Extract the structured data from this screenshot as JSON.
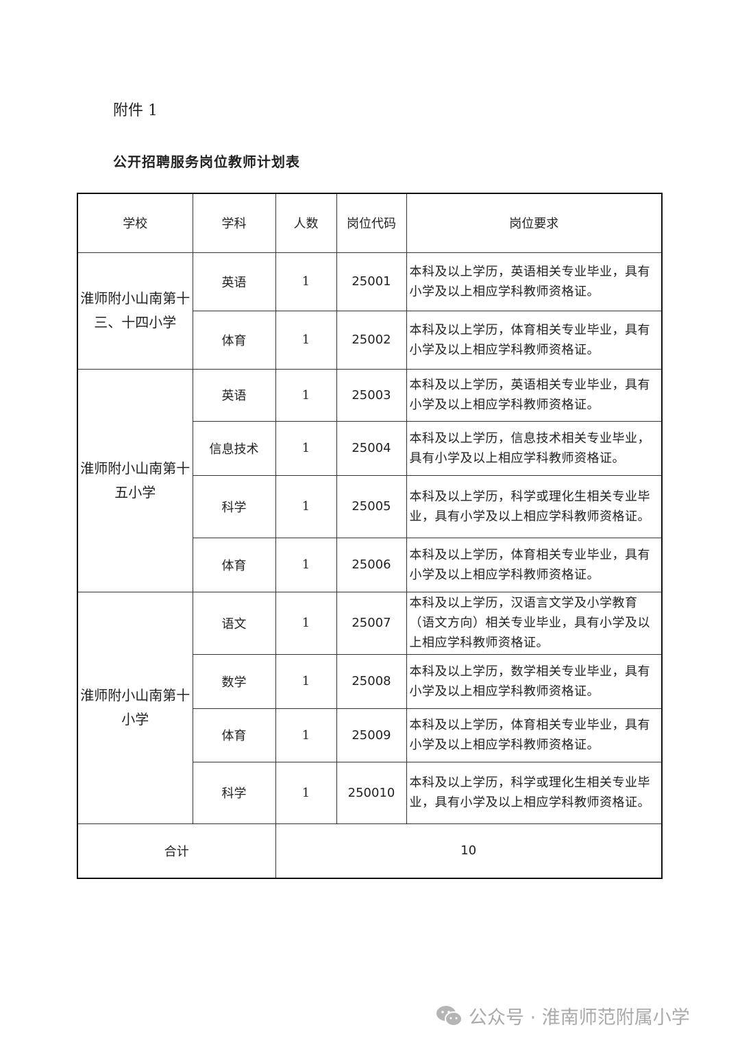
{
  "attachment_label": "附件 1",
  "title": "公开招聘服务岗位教师计划表",
  "headers": [
    "学校",
    "学科",
    "人数",
    "岗位代码",
    "岗位要求"
  ],
  "groups": [
    {
      "school": "淮师附小山南第十三、十四小学",
      "rows": [
        {
          "subject": "英语",
          "count": "1",
          "code": "25001",
          "req": "本科及以上学历，英语相关专业毕业，具有小学及以上相应学科教师资格证。"
        },
        {
          "subject": "体育",
          "count": "1",
          "code": "25002",
          "req": "本科及以上学历，体育相关专业毕业，具有小学及以上相应学科教师资格证。"
        }
      ]
    },
    {
      "school": "淮师附小山南第十五小学",
      "rows": [
        {
          "subject": "英语",
          "count": "1",
          "code": "25003",
          "req": "本科及以上学历，英语相关专业毕业，具有小学及以上相应学科教师资格证。"
        },
        {
          "subject": "信息技术",
          "count": "1",
          "code": "25004",
          "req": "本科及以上学历，信息技术相关专业毕业，具有小学及以上相应学科教师资格证。"
        },
        {
          "subject": "科学",
          "count": "1",
          "code": "25005",
          "req": "本科及以上学历，科学或理化生相关专业毕业，具有小学及以上相应学科教师资格证。"
        },
        {
          "subject": "体育",
          "count": "1",
          "code": "25006",
          "req": "本科及以上学历，体育相关专业毕业，具有小学及以上相应学科教师资格证。"
        }
      ]
    },
    {
      "school": "淮师附小山南第十小学",
      "rows": [
        {
          "subject": "语文",
          "count": "1",
          "code": "25007",
          "req": "本科及以上学历，汉语言文学及小学教育（语文方向）相关专业毕业，具有小学及以上相应学科教师资格证。"
        },
        {
          "subject": "数学",
          "count": "1",
          "code": "25008",
          "req": "本科及以上学历，数学相关专业毕业，具有小学及以上相应学科教师资格证。"
        },
        {
          "subject": "体育",
          "count": "1",
          "code": "25009",
          "req": "本科及以上学历，体育相关专业毕业，具有小学及以上相应学科教师资格证。"
        },
        {
          "subject": "科学",
          "count": "1",
          "code": "250010",
          "req": "本科及以上学历，科学或理化生相关专业毕业，具有小学及以上相应学科教师资格证。"
        }
      ]
    }
  ],
  "total_label": "合计",
  "total_value": "10",
  "watermark": {
    "icon": "wechat-icon",
    "text": "公众号 · 淮南师范附属小学"
  }
}
